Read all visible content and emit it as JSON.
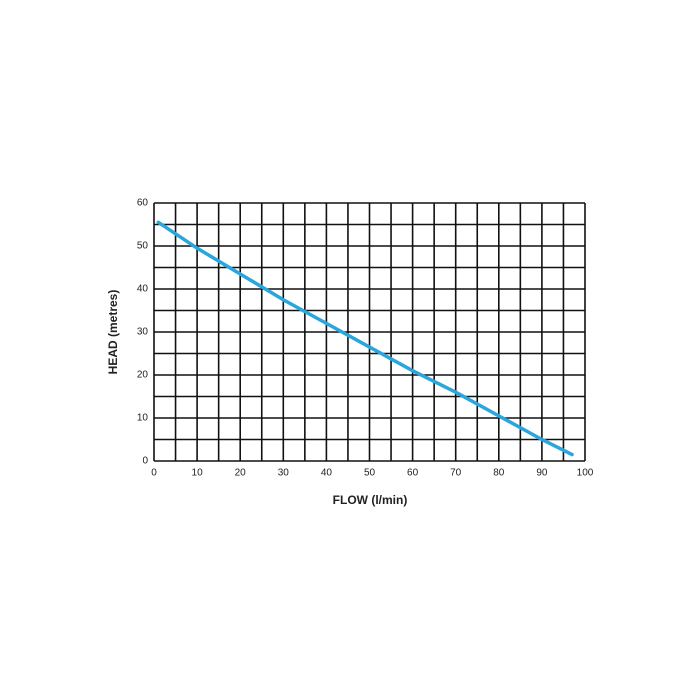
{
  "chart_data": {
    "type": "line",
    "xlabel": "FLOW (l/min)",
    "ylabel": "HEAD (metres)",
    "x": [
      1,
      10,
      20,
      30,
      40,
      50,
      60,
      70,
      80,
      90,
      97
    ],
    "series": [
      {
        "color": "#2aa6dc",
        "values": [
          55.5,
          49.5,
          43.5,
          37.5,
          32,
          26.5,
          21,
          16,
          10.5,
          5,
          1.5
        ]
      }
    ],
    "xlim": [
      0,
      100
    ],
    "ylim": [
      0,
      60
    ],
    "xticks": [
      0,
      10,
      20,
      30,
      40,
      50,
      60,
      70,
      80,
      90,
      100
    ],
    "yticks": [
      0,
      10,
      20,
      30,
      40,
      50,
      60
    ],
    "x_minor_ticks": [
      5,
      15,
      25,
      35,
      45,
      55,
      65,
      75,
      85,
      95
    ],
    "y_minor_ticks": [
      5,
      15,
      25,
      35,
      45,
      55
    ],
    "grid": true
  }
}
